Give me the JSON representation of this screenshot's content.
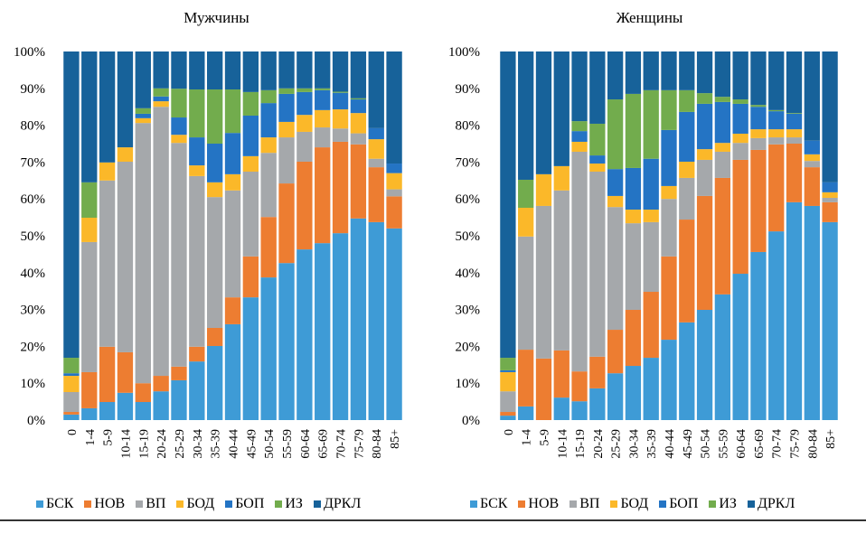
{
  "chart_data": [
    {
      "type": "bar",
      "stacked": true,
      "title": "Мужчины",
      "xlabel": "",
      "ylabel": "",
      "ylim": [
        0,
        100
      ],
      "yticks": [
        "0%",
        "10%",
        "20%",
        "30%",
        "40%",
        "50%",
        "60%",
        "70%",
        "80%",
        "90%",
        "100%"
      ],
      "grid": false,
      "legend": "bottom",
      "categories": [
        "0",
        "1-4",
        "5-9",
        "10-14",
        "15-19",
        "20-24",
        "25-29",
        "30-34",
        "35-39",
        "40-44",
        "45-49",
        "50-54",
        "55-59",
        "60-64",
        "65-69",
        "70-74",
        "75-79",
        "80-84",
        "85+"
      ],
      "series": [
        {
          "name": "БСК",
          "color": "#3e9bd6",
          "values": [
            1.5,
            3.2,
            4.9,
            7.4,
            4.9,
            7.8,
            10.8,
            15.9,
            20.1,
            26.0,
            33.3,
            38.7,
            42.6,
            46.3,
            48.0,
            50.7,
            54.7,
            53.7,
            52.0
          ]
        },
        {
          "name": "НОВ",
          "color": "#ed7d31",
          "values": [
            0.7,
            9.8,
            15.0,
            11.0,
            5.1,
            4.2,
            3.7,
            4.0,
            4.9,
            7.3,
            11.1,
            16.4,
            21.6,
            23.8,
            26.0,
            24.8,
            20.1,
            14.9,
            8.7
          ]
        },
        {
          "name": "ВП",
          "color": "#a5a8ab",
          "values": [
            5.4,
            35.3,
            45.1,
            51.7,
            70.6,
            73.0,
            60.7,
            46.3,
            35.5,
            29.0,
            23.0,
            17.4,
            12.5,
            8.1,
            5.4,
            3.6,
            3.0,
            2.3,
            1.9
          ]
        },
        {
          "name": "БОД",
          "color": "#fbb829",
          "values": [
            4.4,
            6.6,
            4.9,
            3.9,
            1.3,
            1.5,
            2.2,
            2.9,
            4.0,
            4.4,
            4.2,
            4.2,
            4.2,
            4.6,
            4.7,
            5.2,
            5.5,
            5.3,
            4.4
          ]
        },
        {
          "name": "БОП",
          "color": "#2474c4",
          "values": [
            0.7,
            0,
            0,
            0,
            1.2,
            1.3,
            4.7,
            7.6,
            10.5,
            11.2,
            11.0,
            9.3,
            7.6,
            6.2,
            5.4,
            4.5,
            3.7,
            3.0,
            2.6
          ]
        },
        {
          "name": "ИЗ",
          "color": "#72ac4d",
          "values": [
            4.2,
            9.6,
            0,
            0,
            1.5,
            2.2,
            7.8,
            13.0,
            14.7,
            11.8,
            6.4,
            3.5,
            1.5,
            1.0,
            0.5,
            0.3,
            0.3,
            0,
            0
          ]
        },
        {
          "name": "ДРКЛ",
          "color": "#17629a",
          "values": [
            83.1,
            35.5,
            30.1,
            26.0,
            15.4,
            10.0,
            10.1,
            10.3,
            10.3,
            10.3,
            11.0,
            10.5,
            10.0,
            10.0,
            10.0,
            10.9,
            12.7,
            20.8,
            30.4
          ]
        }
      ]
    },
    {
      "type": "bar",
      "stacked": true,
      "title": "Женщины",
      "xlabel": "",
      "ylabel": "",
      "ylim": [
        0,
        100
      ],
      "yticks": [
        "0%",
        "10%",
        "20%",
        "30%",
        "40%",
        "50%",
        "60%",
        "70%",
        "80%",
        "90%",
        "100%"
      ],
      "grid": false,
      "legend": "bottom",
      "categories": [
        "0",
        "1-4",
        "5-9",
        "10-14",
        "15-19",
        "20-24",
        "25-29",
        "30-34",
        "35-39",
        "40-44",
        "45-49",
        "50-54",
        "55-59",
        "60-64",
        "65-69",
        "70-74",
        "75-79",
        "80-84",
        "85+"
      ],
      "series": [
        {
          "name": "БСК",
          "color": "#3e9bd6",
          "values": [
            1.2,
            3.7,
            0,
            6.1,
            5.1,
            8.6,
            12.7,
            14.7,
            16.9,
            21.8,
            26.5,
            29.9,
            34.1,
            39.7,
            45.6,
            51.2,
            59.1,
            58.1,
            53.7
          ]
        },
        {
          "name": "НОВ",
          "color": "#ed7d31",
          "values": [
            1.0,
            15.4,
            16.7,
            12.8,
            8.1,
            8.6,
            11.8,
            15.2,
            17.9,
            22.6,
            27.9,
            30.9,
            31.6,
            30.9,
            27.7,
            23.6,
            15.9,
            10.5,
            5.4
          ]
        },
        {
          "name": "ВП",
          "color": "#a5a8ab",
          "values": [
            5.6,
            30.7,
            41.4,
            43.4,
            59.6,
            50.2,
            33.3,
            23.5,
            18.9,
            15.6,
            11.3,
            9.8,
            7.1,
            4.6,
            3.2,
            1.9,
            1.7,
            1.7,
            1.2
          ]
        },
        {
          "name": "БОД",
          "color": "#fbb829",
          "values": [
            5.2,
            7.8,
            8.6,
            6.6,
            2.7,
            2.2,
            3.0,
            3.7,
            3.4,
            3.5,
            4.4,
            2.9,
            2.4,
            2.5,
            2.4,
            2.2,
            2.2,
            1.8,
            1.5
          ]
        },
        {
          "name": "БОП",
          "color": "#2474c4",
          "values": [
            0.5,
            0,
            0,
            0,
            2.9,
            2.2,
            7.3,
            11.3,
            13.8,
            15.2,
            13.5,
            12.3,
            11.1,
            8.1,
            6.1,
            4.9,
            4.2,
            3.7,
            2.7
          ]
        },
        {
          "name": "ИЗ",
          "color": "#72ac4d",
          "values": [
            3.4,
            7.6,
            0,
            0,
            2.7,
            8.6,
            18.9,
            20.1,
            18.6,
            10.8,
            5.9,
            2.9,
            1.4,
            1.2,
            0.5,
            0.3,
            0.2,
            0,
            0
          ]
        },
        {
          "name": "ДРКЛ",
          "color": "#17629a",
          "values": [
            83.1,
            34.8,
            33.3,
            31.1,
            18.9,
            19.6,
            13.0,
            11.5,
            10.5,
            10.5,
            10.5,
            11.3,
            12.3,
            13.0,
            14.5,
            15.9,
            16.7,
            24.2,
            35.5
          ]
        }
      ]
    }
  ]
}
